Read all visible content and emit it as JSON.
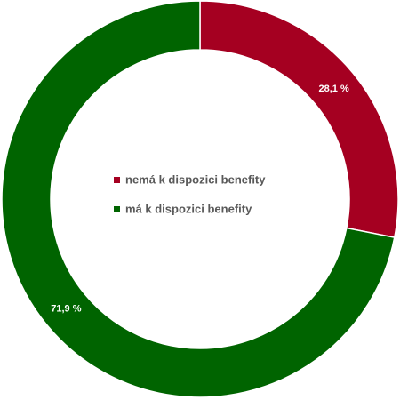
{
  "chart_data": {
    "type": "donut",
    "categories": [
      "nemá k dispozici benefity",
      "má k dispozici benefity"
    ],
    "values": [
      28.1,
      71.9
    ],
    "value_labels": [
      "28,1 %",
      "71,9 %"
    ],
    "colors": [
      "#a50021",
      "#006400"
    ]
  }
}
